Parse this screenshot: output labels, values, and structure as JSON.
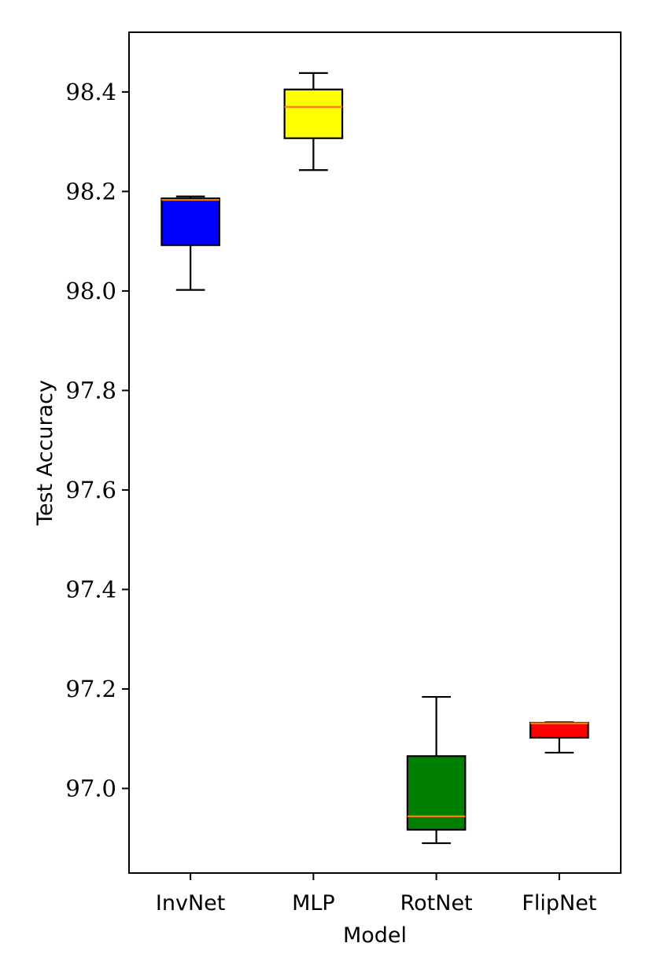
{
  "chart_data": {
    "type": "box",
    "title": "",
    "xlabel": "Model",
    "ylabel": "Test Accuracy",
    "ylim": [
      96.83,
      98.52
    ],
    "yticks": [
      "97.0",
      "97.2",
      "97.4",
      "97.6",
      "97.8",
      "98.0",
      "98.2",
      "98.4"
    ],
    "grid": false,
    "legend": "none",
    "median_color": "#ff7f0e",
    "categories": [
      "InvNet",
      "MLP",
      "RotNet",
      "FlipNet"
    ],
    "boxes": [
      {
        "category": "InvNet",
        "whisker_low": 98.002,
        "q1": 98.092,
        "median": 98.183,
        "q3": 98.186,
        "whisker_high": 98.19,
        "color": "#0000ff"
      },
      {
        "category": "MLP",
        "whisker_low": 98.243,
        "q1": 98.307,
        "median": 98.37,
        "q3": 98.405,
        "whisker_high": 98.438,
        "color": "#ffff00"
      },
      {
        "category": "RotNet",
        "whisker_low": 96.89,
        "q1": 96.917,
        "median": 96.944,
        "q3": 97.065,
        "whisker_high": 97.184,
        "color": "#008000"
      },
      {
        "category": "FlipNet",
        "whisker_low": 97.072,
        "q1": 97.102,
        "median": 97.131,
        "q3": 97.132,
        "whisker_high": 97.133,
        "color": "#ff0000"
      }
    ]
  }
}
